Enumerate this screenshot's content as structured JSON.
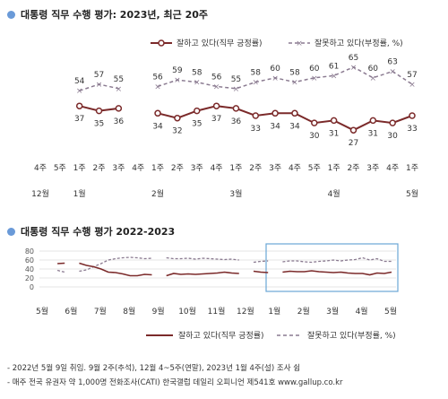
{
  "top": {
    "title": "대통령 직무 수행 평가: 2023년, 최근 20주",
    "legend": {
      "approve": "잘하고 있다(직무 긍정률)",
      "disapprove": "잘못하고 있다(부정률, %)"
    },
    "colors": {
      "approve": "#7b2a2a",
      "disapprove": "#8a7a90",
      "accent": "#6a9ad8",
      "box": "#6aa6d6"
    }
  },
  "chart_data": [
    {
      "type": "line",
      "title": "대통령 직무 수행 평가: 2023년, 최근 20주",
      "categories": [
        "4주",
        "5주",
        "1주",
        "2주",
        "3주",
        "4주",
        "1주",
        "2주",
        "3주",
        "4주",
        "1주",
        "2주",
        "3주",
        "4주",
        "5주",
        "1주",
        "2주",
        "3주",
        "4주",
        "1주"
      ],
      "month_labels": [
        {
          "index": 0,
          "label": "12월"
        },
        {
          "index": 2,
          "label": "1월"
        },
        {
          "index": 6,
          "label": "2월"
        },
        {
          "index": 10,
          "label": "3월"
        },
        {
          "index": 15,
          "label": "4월"
        },
        {
          "index": 19,
          "label": "5월"
        }
      ],
      "series": [
        {
          "name": "잘하고 있다(직무 긍정률)",
          "values": [
            null,
            null,
            37,
            35,
            36,
            null,
            34,
            32,
            35,
            37,
            36,
            33,
            34,
            34,
            30,
            31,
            27,
            31,
            30,
            33
          ]
        },
        {
          "name": "잘못하고 있다(부정률, %)",
          "values": [
            null,
            null,
            54,
            57,
            55,
            null,
            56,
            59,
            58,
            56,
            55,
            58,
            60,
            58,
            60,
            61,
            65,
            60,
            63,
            57
          ]
        }
      ]
    },
    {
      "type": "line",
      "title": "대통령 직무 수행 평가 2022-2023",
      "xlabels": [
        "5월",
        "6월",
        "7월",
        "8월",
        "9월",
        "10월",
        "11월",
        "12월",
        "1월",
        "2월",
        "3월",
        "4월",
        "5월"
      ],
      "yticks": [
        0,
        20,
        40,
        60,
        80
      ],
      "ylim": [
        0,
        80
      ],
      "series": [
        {
          "name": "잘하고 있다(직무 긍정률)",
          "values": [
            null,
            52,
            53,
            null,
            53,
            48,
            45,
            40,
            33,
            32,
            29,
            25,
            25,
            28,
            27,
            null,
            25,
            30,
            28,
            29,
            28,
            29,
            30,
            31,
            33,
            31,
            30,
            null,
            35,
            33,
            32,
            null,
            33,
            35,
            34,
            34,
            36,
            34,
            33,
            32,
            33,
            31,
            30,
            30,
            27,
            31,
            30,
            33
          ]
        },
        {
          "name": "잘못하고 있다(부정률, %)",
          "values": [
            null,
            37,
            33,
            null,
            35,
            38,
            45,
            52,
            60,
            63,
            65,
            66,
            65,
            63,
            64,
            null,
            65,
            63,
            63,
            64,
            62,
            64,
            63,
            62,
            61,
            62,
            60,
            null,
            55,
            57,
            58,
            null,
            56,
            58,
            58,
            56,
            55,
            57,
            58,
            60,
            58,
            60,
            61,
            65,
            60,
            63,
            57,
            57
          ]
        }
      ]
    }
  ],
  "bottom": {
    "title": "대통령 직무 수행 평가 2022-2023",
    "legend": {
      "approve": "잘하고 있다(직무 긍정률)",
      "disapprove": "잘못하고 있다(부정률, %)"
    }
  },
  "notes": [
    "- 2022년 5월 9일 취임. 9월 2주(추석), 12월 4~5주(연말), 2023년 1월 4주(설) 조사 쉼",
    "- 매주 전국 유권자 약 1,000명 전화조사(CATI) 한국갤럽 데일리 오피니언 제541호 www.gallup.co.kr"
  ]
}
